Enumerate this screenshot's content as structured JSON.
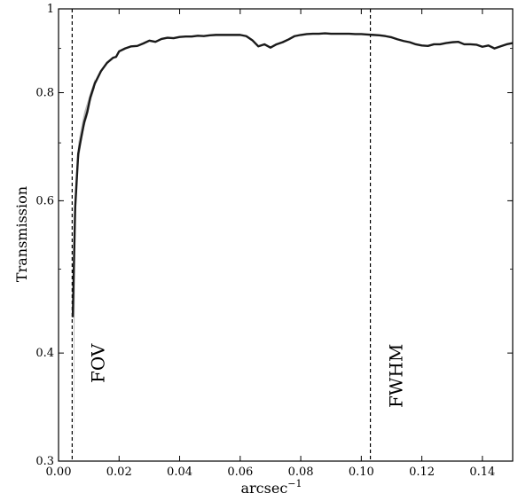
{
  "chart_data": {
    "type": "line",
    "title": "",
    "xlabel": "arcsec",
    "xlabel_superscript": "−1",
    "ylabel": "Transmission",
    "xlim": [
      0.0,
      0.15
    ],
    "ylim": [
      0.3,
      1.0
    ],
    "yscale": "log",
    "grid": false,
    "x_ticks": [
      0.0,
      0.02,
      0.04,
      0.06,
      0.08,
      0.1,
      0.12,
      0.14
    ],
    "x_tick_labels": [
      "0.00",
      "0.02",
      "0.04",
      "0.06",
      "0.08",
      "0.10",
      "0.12",
      "0.14"
    ],
    "y_ticks": [
      0.3,
      0.4,
      0.6,
      0.8,
      1.0
    ],
    "y_tick_labels": [
      "0.3",
      "0.4",
      "0.6",
      "0.8",
      "1"
    ],
    "vlines": [
      {
        "x": 0.0045,
        "label": "FOV"
      },
      {
        "x": 0.103,
        "label": "FWHM"
      }
    ],
    "series": [
      {
        "x": [
          0.0047,
          0.0055,
          0.0065,
          0.0075,
          0.0085,
          0.0095,
          0.0105,
          0.012,
          0.014,
          0.016,
          0.018,
          0.019,
          0.02,
          0.022,
          0.024,
          0.026,
          0.028,
          0.03,
          0.032,
          0.034,
          0.036,
          0.038,
          0.04,
          0.042,
          0.044,
          0.046,
          0.048,
          0.05,
          0.052,
          0.054,
          0.056,
          0.058,
          0.06,
          0.062,
          0.064,
          0.066,
          0.068,
          0.07,
          0.072,
          0.074,
          0.076,
          0.078,
          0.08,
          0.082,
          0.084,
          0.086,
          0.088,
          0.09,
          0.092,
          0.094,
          0.096,
          0.098,
          0.1,
          0.102,
          0.104,
          0.106,
          0.108,
          0.11,
          0.112,
          0.114,
          0.116,
          0.118,
          0.12,
          0.122,
          0.124,
          0.126,
          0.128,
          0.13,
          0.132,
          0.134,
          0.136,
          0.138,
          0.14,
          0.142,
          0.144,
          0.146,
          0.148,
          0.15
        ],
        "y": [
          0.44,
          0.59,
          0.68,
          0.71,
          0.74,
          0.76,
          0.79,
          0.82,
          0.847,
          0.866,
          0.878,
          0.88,
          0.893,
          0.9,
          0.905,
          0.906,
          0.912,
          0.919,
          0.916,
          0.923,
          0.926,
          0.925,
          0.928,
          0.929,
          0.929,
          0.931,
          0.93,
          0.932,
          0.933,
          0.933,
          0.933,
          0.933,
          0.933,
          0.93,
          0.92,
          0.905,
          0.91,
          0.902,
          0.91,
          0.915,
          0.922,
          0.93,
          0.933,
          0.935,
          0.936,
          0.936,
          0.937,
          0.936,
          0.936,
          0.936,
          0.936,
          0.935,
          0.935,
          0.934,
          0.933,
          0.932,
          0.93,
          0.927,
          0.922,
          0.918,
          0.915,
          0.91,
          0.907,
          0.906,
          0.91,
          0.91,
          0.913,
          0.915,
          0.916,
          0.91,
          0.91,
          0.909,
          0.904,
          0.907,
          0.9,
          0.905,
          0.91,
          0.913
        ]
      }
    ],
    "uncertainty_band": {
      "x": [
        0.005,
        0.0055,
        0.0065,
        0.0075,
        0.0085,
        0.0095,
        0.0105,
        0.012
      ],
      "y_low": [
        0.3,
        0.56,
        0.66,
        0.7,
        0.73,
        0.75,
        0.78,
        0.81
      ],
      "y_high": [
        0.46,
        0.62,
        0.7,
        0.73,
        0.76,
        0.78,
        0.8,
        0.83
      ]
    },
    "colors": {
      "line": "#1a1a1a",
      "band": "#b8b8b8",
      "vline": "#000000"
    }
  }
}
